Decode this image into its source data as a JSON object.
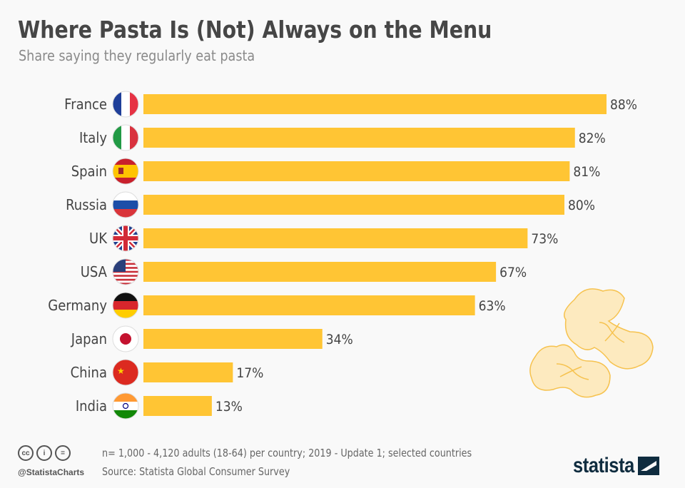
{
  "header": {
    "title": "Where Pasta Is (Not) Always on the Menu",
    "subtitle": "Share saying they regularly eat pasta"
  },
  "chart_data": {
    "type": "bar",
    "orientation": "horizontal",
    "categories": [
      "France",
      "Italy",
      "Spain",
      "Russia",
      "UK",
      "USA",
      "Germany",
      "Japan",
      "China",
      "India"
    ],
    "values": [
      88,
      82,
      81,
      80,
      73,
      67,
      63,
      34,
      17,
      13
    ],
    "value_suffix": "%",
    "flags": [
      "france-flag-icon",
      "italy-flag-icon",
      "spain-flag-icon",
      "russia-flag-icon",
      "uk-flag-icon",
      "usa-flag-icon",
      "germany-flag-icon",
      "japan-flag-icon",
      "china-flag-icon",
      "india-flag-icon"
    ],
    "xlim": [
      0,
      100
    ],
    "grid": false,
    "bar_color": "#ffc534",
    "title": "Where Pasta Is (Not) Always on the Menu",
    "subtitle": "Share saying they regularly eat pasta"
  },
  "footer": {
    "note": "n= 1,000 - 4,120 adults (18-64) per country; 2019 - Update 1; selected countries",
    "source": "Source: Statista Global Consumer Survey",
    "handle": "@StatistaCharts",
    "license_icons": [
      "cc-icon",
      "by-icon",
      "nd-icon"
    ],
    "logo": "statista"
  }
}
